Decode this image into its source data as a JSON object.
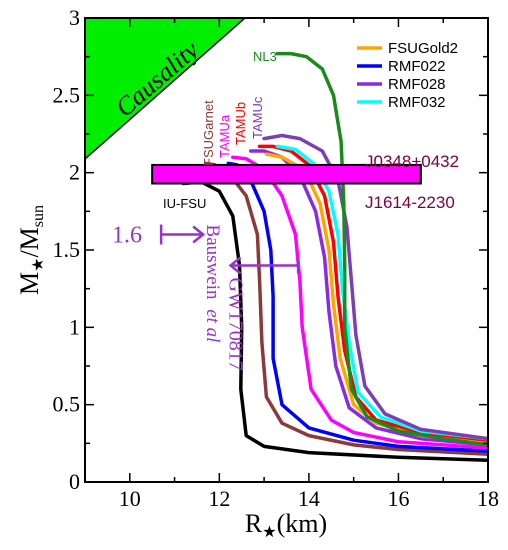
{
  "chart_data": {
    "type": "line",
    "title": "",
    "xlabel": "R",
    "xlabel_sub": "★",
    "xlabel_unit": "(km)",
    "ylabel": "M",
    "ylabel_sub": "★",
    "ylabel_sep": "/M",
    "ylabel_sub2": "sun",
    "xlim": [
      9,
      18
    ],
    "ylim": [
      0,
      3
    ],
    "xticks": [
      "10",
      "12",
      "14",
      "16",
      "18"
    ],
    "yticks": [
      "0",
      "0.5",
      "1",
      "1.5",
      "2",
      "2.5",
      "3"
    ],
    "legend": {
      "placement": "top-right",
      "entries": [
        {
          "name": "FSUGold2",
          "color": "#ffa500"
        },
        {
          "name": "RMF022",
          "color": "#0000ff"
        },
        {
          "name": "RMF028",
          "color": "#8a2be2"
        },
        {
          "name": "RMF032",
          "color": "#00ffff"
        }
      ]
    },
    "causality": {
      "label": "Causality",
      "color": "#00ee00"
    },
    "mass_band": {
      "y_low": 1.93,
      "y_high": 2.05,
      "x_start": 10.5,
      "x_end": 16.5,
      "color": "#ff00ff",
      "label_top": "J0348+0432",
      "label_bottom": "J1614-2230",
      "label_color": "#800040"
    },
    "bauswein": {
      "mass_label": "1.6",
      "mass": 1.6,
      "radius_min": 10.7,
      "author": "Bauswein",
      "author_suffix": "et al",
      "color": "#9932cc"
    },
    "gw170817": {
      "label": "GW170817",
      "radius_max": 13.76,
      "mass": 1.4,
      "error_start": 12.25,
      "color": "#9932cc"
    },
    "series": [
      {
        "name": "IU-FSU",
        "color": "#000000",
        "label_color": "#000000",
        "points": [
          [
            18,
            0.14
          ],
          [
            16,
            0.16
          ],
          [
            14,
            0.19
          ],
          [
            13,
            0.23
          ],
          [
            12.6,
            0.3
          ],
          [
            12.48,
            0.6
          ],
          [
            12.5,
            1.0
          ],
          [
            12.45,
            1.4
          ],
          [
            12.3,
            1.72
          ],
          [
            12.0,
            1.88
          ],
          [
            11.6,
            1.94
          ],
          [
            11.2,
            1.93
          ]
        ]
      },
      {
        "name": "FSUGarnet",
        "color": "#8b3a3a",
        "label_color": "#8b3a3a",
        "points": [
          [
            18,
            0.18
          ],
          [
            16,
            0.21
          ],
          [
            15,
            0.24
          ],
          [
            14,
            0.3
          ],
          [
            13.4,
            0.38
          ],
          [
            13.05,
            0.55
          ],
          [
            12.95,
            0.9
          ],
          [
            12.9,
            1.3
          ],
          [
            12.85,
            1.6
          ],
          [
            12.6,
            1.85
          ],
          [
            12.2,
            2.0
          ],
          [
            11.9,
            2.05
          ],
          [
            11.7,
            2.06
          ]
        ]
      },
      {
        "name": "RMF022",
        "color": "#0000ff",
        "points": [
          [
            18,
            0.2
          ],
          [
            16,
            0.23
          ],
          [
            15,
            0.27
          ],
          [
            14,
            0.35
          ],
          [
            13.4,
            0.5
          ],
          [
            13.2,
            0.8
          ],
          [
            13.2,
            1.2
          ],
          [
            13.15,
            1.5
          ],
          [
            13.0,
            1.75
          ],
          [
            12.7,
            1.95
          ],
          [
            12.4,
            2.05
          ],
          [
            12.2,
            2.06
          ]
        ]
      },
      {
        "name": "TAMUa",
        "color": "#ff00ff",
        "label_color": "#ff00ff",
        "points": [
          [
            18,
            0.22
          ],
          [
            16,
            0.26
          ],
          [
            15,
            0.32
          ],
          [
            14.5,
            0.4
          ],
          [
            14.05,
            0.6
          ],
          [
            13.85,
            1.0
          ],
          [
            13.8,
            1.3
          ],
          [
            13.7,
            1.6
          ],
          [
            13.4,
            1.85
          ],
          [
            13.0,
            2.02
          ],
          [
            12.6,
            2.09
          ],
          [
            12.3,
            2.1
          ]
        ]
      },
      {
        "name": "RMF028",
        "color": "#8a2be2",
        "points": [
          [
            18,
            0.24
          ],
          [
            16.5,
            0.28
          ],
          [
            15.5,
            0.35
          ],
          [
            14.9,
            0.48
          ],
          [
            14.6,
            0.75
          ],
          [
            14.45,
            1.1
          ],
          [
            14.35,
            1.45
          ],
          [
            14.15,
            1.75
          ],
          [
            13.8,
            1.98
          ],
          [
            13.4,
            2.1
          ],
          [
            13.0,
            2.14
          ],
          [
            12.7,
            2.14
          ]
        ]
      },
      {
        "name": "FSUGold2",
        "color": "#ffa500",
        "points": [
          [
            18,
            0.25
          ],
          [
            16.5,
            0.3
          ],
          [
            15.5,
            0.38
          ],
          [
            15.0,
            0.5
          ],
          [
            14.7,
            0.8
          ],
          [
            14.55,
            1.15
          ],
          [
            14.45,
            1.5
          ],
          [
            14.25,
            1.8
          ],
          [
            13.9,
            2.02
          ],
          [
            13.4,
            2.1
          ],
          [
            13.05,
            2.12
          ]
        ]
      },
      {
        "name": "TAMUb",
        "color": "#ff0000",
        "label_color": "#ff0000",
        "points": [
          [
            18,
            0.27
          ],
          [
            16.5,
            0.32
          ],
          [
            15.5,
            0.4
          ],
          [
            15.05,
            0.55
          ],
          [
            14.8,
            0.85
          ],
          [
            14.65,
            1.2
          ],
          [
            14.55,
            1.55
          ],
          [
            14.35,
            1.85
          ],
          [
            14.0,
            2.05
          ],
          [
            13.6,
            2.14
          ],
          [
            13.2,
            2.17
          ],
          [
            12.9,
            2.17
          ]
        ]
      },
      {
        "name": "RMF032",
        "color": "#00ffff",
        "points": [
          [
            18,
            0.28
          ],
          [
            16.5,
            0.33
          ],
          [
            15.6,
            0.42
          ],
          [
            15.1,
            0.58
          ],
          [
            14.9,
            0.9
          ],
          [
            14.75,
            1.25
          ],
          [
            14.65,
            1.6
          ],
          [
            14.45,
            1.88
          ],
          [
            14.1,
            2.06
          ],
          [
            13.7,
            2.15
          ],
          [
            13.3,
            2.17
          ]
        ]
      },
      {
        "name": "TAMUc",
        "color": "#7b3fb3",
        "label_color": "#7b3fb3",
        "points": [
          [
            18,
            0.28
          ],
          [
            16.5,
            0.34
          ],
          [
            15.7,
            0.44
          ],
          [
            15.25,
            0.62
          ],
          [
            15.05,
            0.95
          ],
          [
            14.95,
            1.3
          ],
          [
            14.85,
            1.65
          ],
          [
            14.65,
            1.95
          ],
          [
            14.3,
            2.14
          ],
          [
            13.8,
            2.22
          ],
          [
            13.4,
            2.24
          ],
          [
            13.0,
            2.22
          ]
        ]
      },
      {
        "name": "NL3",
        "color": "#1a8a1a",
        "label_color": "#1a8a1a",
        "points": [
          [
            18,
            0.24
          ],
          [
            17,
            0.28
          ],
          [
            16,
            0.33
          ],
          [
            15.3,
            0.42
          ],
          [
            14.95,
            0.6
          ],
          [
            14.8,
            1.0
          ],
          [
            14.8,
            1.4
          ],
          [
            14.78,
            1.8
          ],
          [
            14.72,
            2.2
          ],
          [
            14.55,
            2.5
          ],
          [
            14.3,
            2.67
          ],
          [
            13.95,
            2.75
          ],
          [
            13.6,
            2.77
          ],
          [
            13.3,
            2.77
          ]
        ]
      }
    ]
  }
}
